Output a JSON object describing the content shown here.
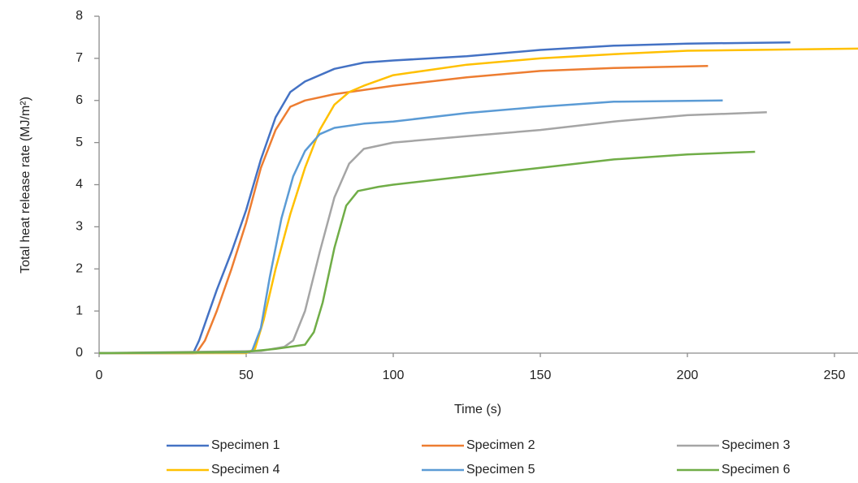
{
  "chart_data": {
    "type": "line",
    "x_label": "Time (s)",
    "y_label": "Total heat release rate (MJ/m²)",
    "xlim": [
      0,
      258
    ],
    "xticks": [
      0,
      50,
      100,
      150,
      200,
      250
    ],
    "ylim": [
      0,
      8
    ],
    "yticks": [
      0,
      1,
      2,
      3,
      4,
      5,
      6,
      7,
      8
    ],
    "legend": "bottom",
    "series": [
      {
        "name": "Specimen 1",
        "color": "#4472c4",
        "x": [
          0,
          32,
          34,
          37,
          40,
          45,
          50,
          55,
          60,
          65,
          70,
          80,
          90,
          100,
          125,
          150,
          175,
          200,
          235
        ],
        "values": [
          0,
          0,
          0.3,
          0.9,
          1.5,
          2.4,
          3.4,
          4.6,
          5.6,
          6.2,
          6.45,
          6.75,
          6.9,
          6.95,
          7.05,
          7.2,
          7.3,
          7.35,
          7.38
        ]
      },
      {
        "name": "Specimen 2",
        "color": "#ed7d31",
        "x": [
          0,
          33,
          36,
          40,
          45,
          50,
          55,
          60,
          65,
          70,
          80,
          100,
          125,
          150,
          175,
          207
        ],
        "values": [
          0,
          0,
          0.3,
          1,
          2,
          3.1,
          4.4,
          5.3,
          5.85,
          6.0,
          6.15,
          6.35,
          6.55,
          6.7,
          6.77,
          6.82
        ]
      },
      {
        "name": "Specimen 3",
        "color": "#a5a5a5",
        "x": [
          0,
          55,
          63,
          66,
          70,
          75,
          80,
          85,
          90,
          100,
          125,
          150,
          175,
          200,
          227
        ],
        "values": [
          0,
          0.05,
          0.15,
          0.3,
          1.0,
          2.4,
          3.7,
          4.5,
          4.85,
          5.0,
          5.15,
          5.3,
          5.5,
          5.65,
          5.72
        ]
      },
      {
        "name": "Specimen 4",
        "color": "#ffc000",
        "x": [
          0,
          50,
          53,
          56,
          60,
          65,
          70,
          75,
          80,
          85,
          90,
          100,
          125,
          150,
          175,
          200,
          258
        ],
        "values": [
          0,
          0,
          0.1,
          0.8,
          2,
          3.3,
          4.4,
          5.3,
          5.9,
          6.2,
          6.35,
          6.6,
          6.85,
          7.0,
          7.1,
          7.18,
          7.23
        ]
      },
      {
        "name": "Specimen 5",
        "color": "#5b9bd5",
        "x": [
          0,
          50,
          52,
          55,
          58,
          62,
          66,
          70,
          75,
          80,
          90,
          100,
          125,
          150,
          175,
          212
        ],
        "values": [
          0,
          0.02,
          0.05,
          0.6,
          1.8,
          3.2,
          4.2,
          4.8,
          5.2,
          5.35,
          5.45,
          5.5,
          5.7,
          5.85,
          5.97,
          6.0
        ]
      },
      {
        "name": "Specimen 6",
        "color": "#70ad47",
        "x": [
          0,
          50,
          60,
          70,
          73,
          76,
          80,
          84,
          88,
          95,
          100,
          125,
          150,
          175,
          200,
          223
        ],
        "values": [
          0,
          0.03,
          0.1,
          0.2,
          0.5,
          1.2,
          2.5,
          3.5,
          3.85,
          3.95,
          4.0,
          4.2,
          4.4,
          4.6,
          4.72,
          4.78
        ]
      }
    ]
  }
}
